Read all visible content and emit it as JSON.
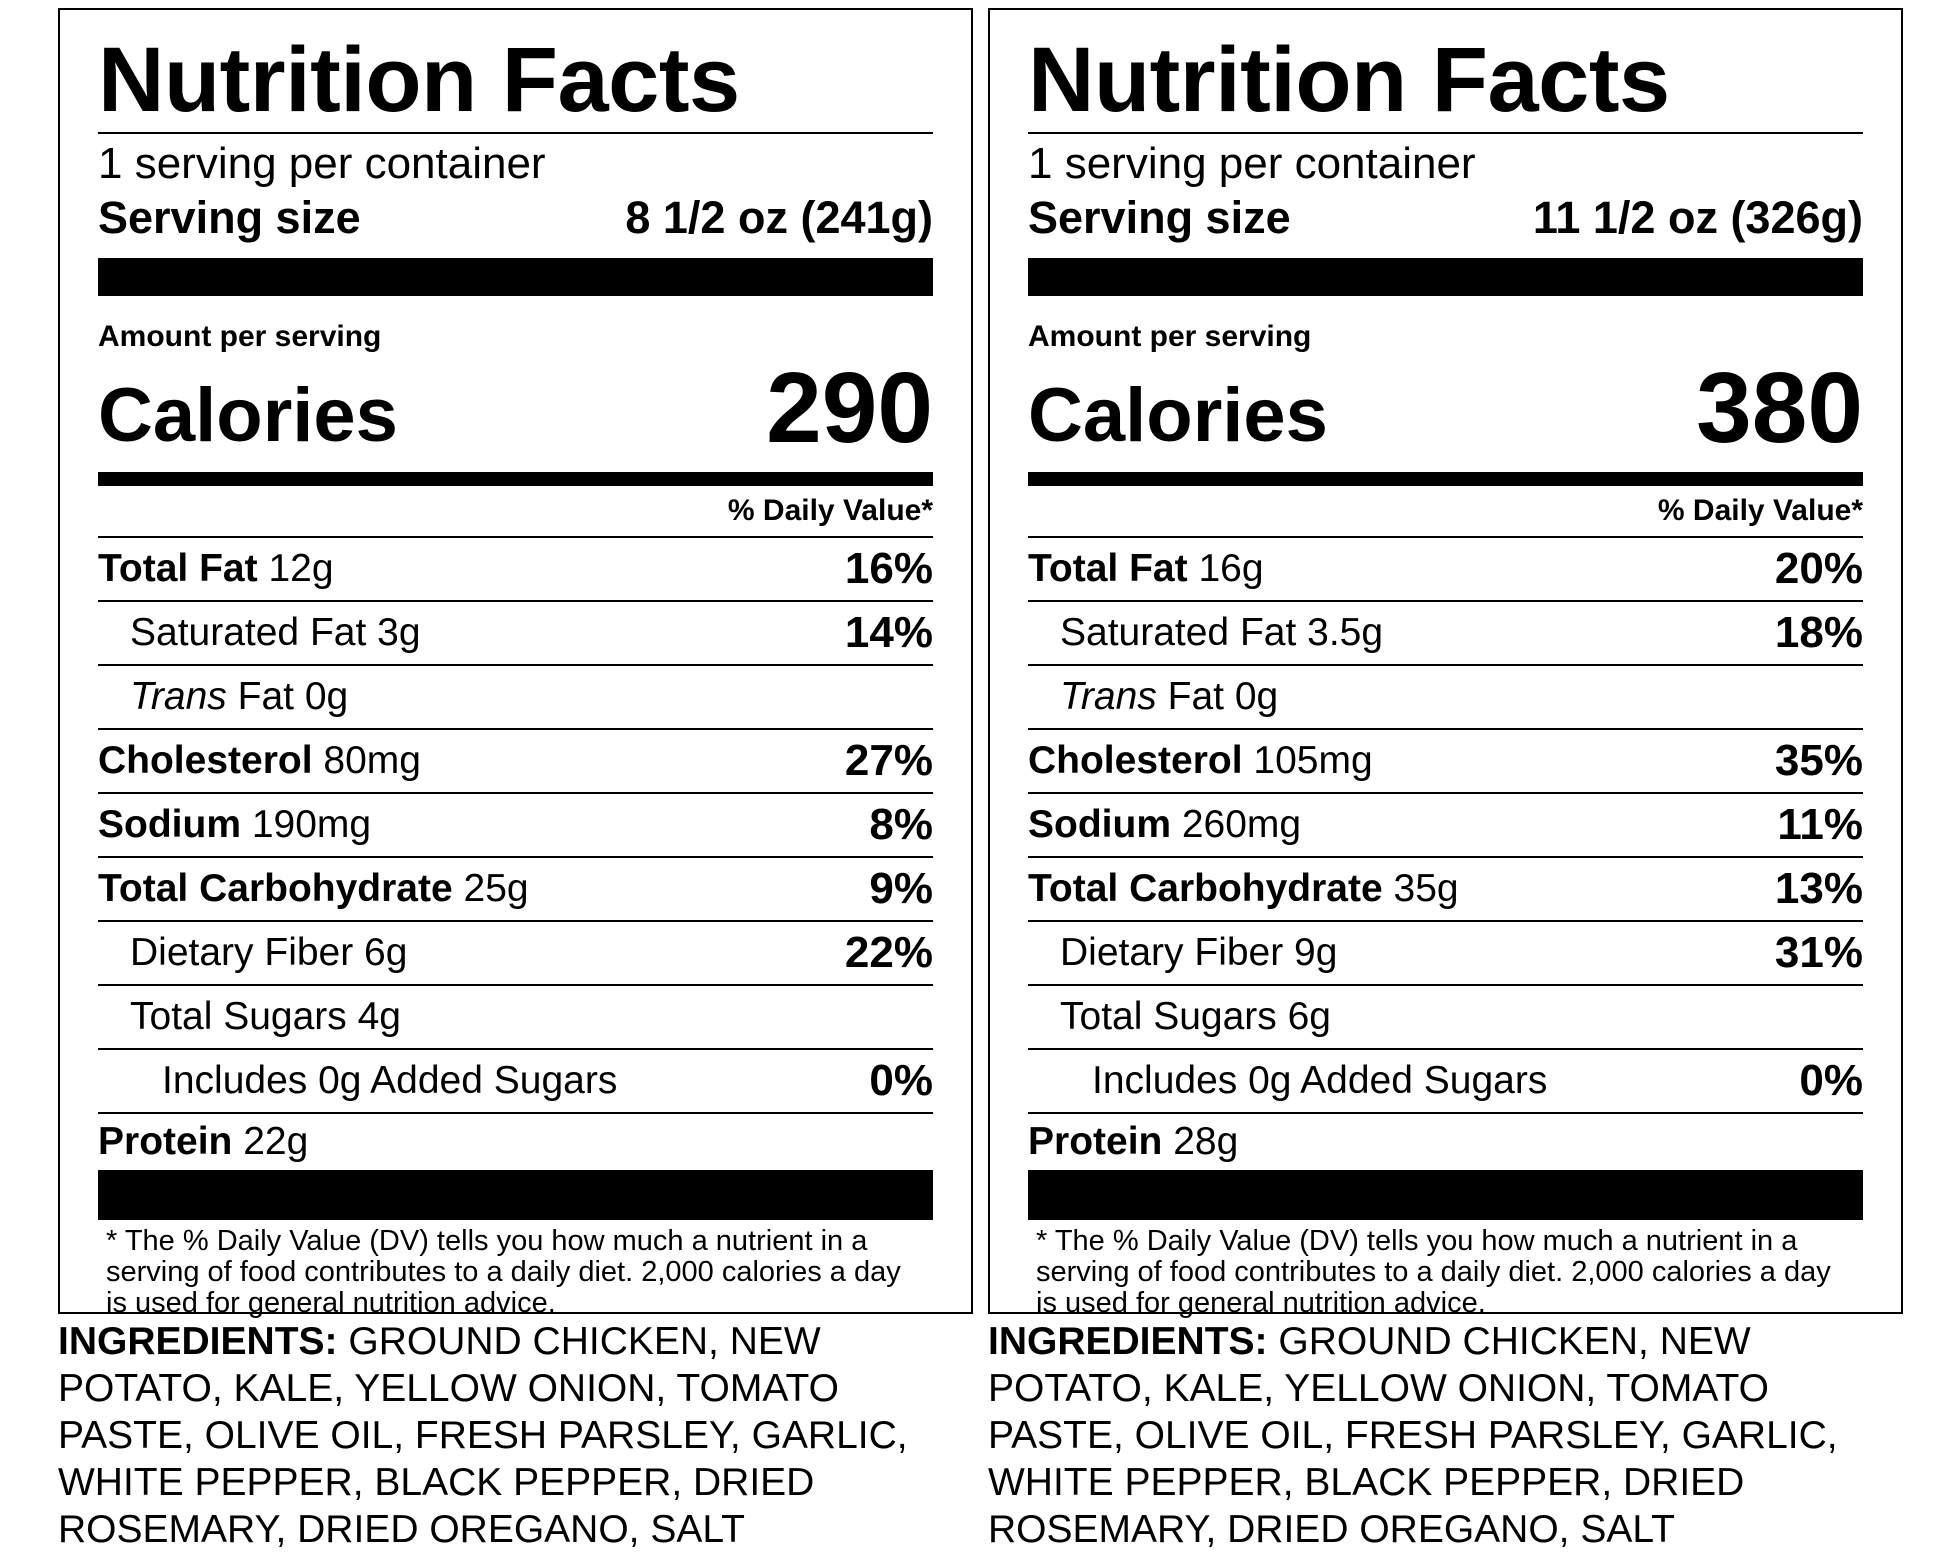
{
  "labels": [
    {
      "title": "Nutrition Facts",
      "servings_per_container": "1 serving per container",
      "serving_size_label": "Serving size",
      "serving_size_value": "8 1/2 oz (241g)",
      "amount_per_serving": "Amount per serving",
      "calories_label": "Calories",
      "calories_value": "290",
      "daily_value_header": "% Daily Value*",
      "nutrients": {
        "total_fat": {
          "label": "Total Fat",
          "amount": "12g",
          "dv": "16%"
        },
        "saturated_fat": {
          "label": "Saturated Fat 3g",
          "dv": "14%"
        },
        "trans_fat": {
          "label_italic": "Trans",
          "label_rest": " Fat 0g"
        },
        "cholesterol": {
          "label": "Cholesterol",
          "amount": "80mg",
          "dv": "27%"
        },
        "sodium": {
          "label": "Sodium",
          "amount": "190mg",
          "dv": "8%"
        },
        "total_carbohydrate": {
          "label": "Total Carbohydrate",
          "amount": "25g",
          "dv": "9%"
        },
        "dietary_fiber": {
          "label": "Dietary Fiber 6g",
          "dv": "22%"
        },
        "total_sugars": {
          "label": "Total Sugars 4g"
        },
        "added_sugars": {
          "label": "Includes 0g Added Sugars",
          "dv": "0%"
        },
        "protein": {
          "label": "Protein",
          "amount": "22g"
        }
      },
      "footnote": "* The % Daily Value (DV) tells you how much a nutrient in a serving of food contributes to a daily diet. 2,000 calories a day is used for general nutrition advice.",
      "ingredients_label": "INGREDIENTS:",
      "ingredients_text": "GROUND CHICKEN, NEW POTATO, KALE, YELLOW ONION, TOMATO PASTE, OLIVE OIL, FRESH PARSLEY, GARLIC, WHITE PEPPER, BLACK PEPPER, DRIED ROSEMARY, DRIED OREGANO, SALT"
    },
    {
      "title": "Nutrition Facts",
      "servings_per_container": "1 serving per container",
      "serving_size_label": "Serving size",
      "serving_size_value": "11 1/2 oz (326g)",
      "amount_per_serving": "Amount per serving",
      "calories_label": "Calories",
      "calories_value": "380",
      "daily_value_header": "% Daily Value*",
      "nutrients": {
        "total_fat": {
          "label": "Total Fat",
          "amount": "16g",
          "dv": "20%"
        },
        "saturated_fat": {
          "label": "Saturated Fat 3.5g",
          "dv": "18%"
        },
        "trans_fat": {
          "label_italic": "Trans",
          "label_rest": " Fat 0g"
        },
        "cholesterol": {
          "label": "Cholesterol",
          "amount": "105mg",
          "dv": "35%"
        },
        "sodium": {
          "label": "Sodium",
          "amount": "260mg",
          "dv": "11%"
        },
        "total_carbohydrate": {
          "label": "Total Carbohydrate",
          "amount": "35g",
          "dv": "13%"
        },
        "dietary_fiber": {
          "label": "Dietary Fiber 9g",
          "dv": "31%"
        },
        "total_sugars": {
          "label": "Total Sugars 6g"
        },
        "added_sugars": {
          "label": "Includes 0g Added Sugars",
          "dv": "0%"
        },
        "protein": {
          "label": "Protein",
          "amount": "28g"
        }
      },
      "footnote": "* The % Daily Value (DV) tells you how much a nutrient in a serving of food contributes to a daily diet. 2,000 calories a day is used for general nutrition advice.",
      "ingredients_label": "INGREDIENTS:",
      "ingredients_text": "GROUND CHICKEN, NEW POTATO, KALE, YELLOW ONION, TOMATO PASTE, OLIVE OIL, FRESH PARSLEY, GARLIC, WHITE PEPPER, BLACK PEPPER, DRIED ROSEMARY, DRIED OREGANO, SALT"
    }
  ]
}
